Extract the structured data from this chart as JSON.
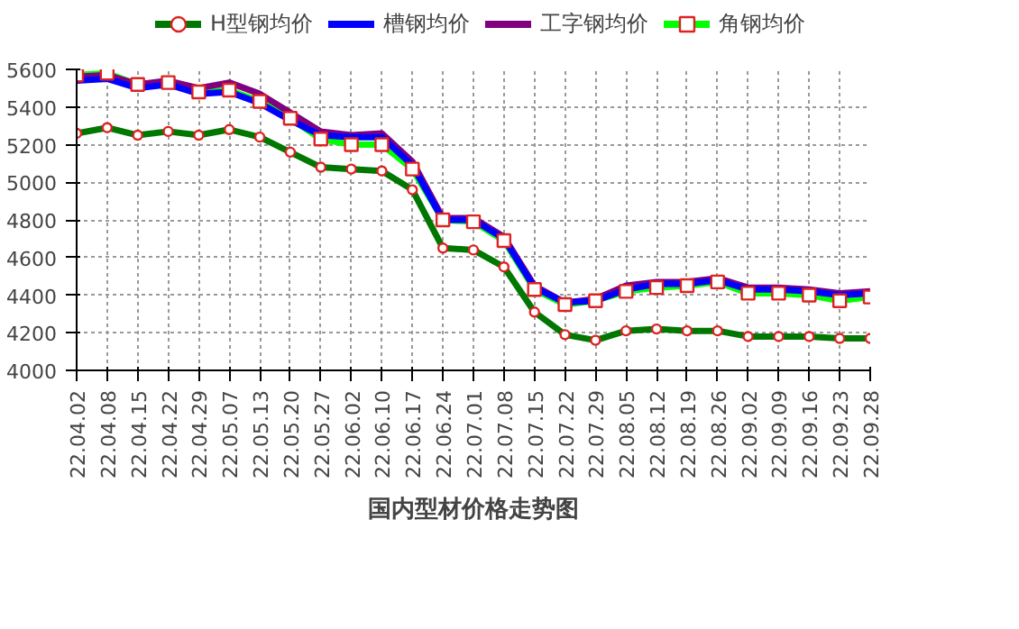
{
  "chart_data": {
    "type": "line",
    "title": "国内型材价格走势图",
    "categories": [
      "22.04.02",
      "22.04.08",
      "22.04.15",
      "22.04.22",
      "22.04.29",
      "22.05.07",
      "22.05.13",
      "22.05.20",
      "22.05.27",
      "22.06.02",
      "22.06.10",
      "22.06.17",
      "22.06.24",
      "22.07.01",
      "22.07.08",
      "22.07.15",
      "22.07.22",
      "22.07.29",
      "22.08.05",
      "22.08.12",
      "22.08.19",
      "22.08.26",
      "22.09.02",
      "22.09.09",
      "22.09.16",
      "22.09.23",
      "22.09.28"
    ],
    "series": [
      {
        "name": "H型钢均价",
        "color": "#007700",
        "marker": "circle",
        "values": [
          5260,
          5290,
          5250,
          5270,
          5250,
          5280,
          5240,
          5160,
          5080,
          5070,
          5060,
          4960,
          4650,
          4640,
          4550,
          4310,
          4190,
          4160,
          4210,
          4220,
          4210,
          4210,
          4180,
          4180,
          4180,
          4170,
          4170
        ]
      },
      {
        "name": "槽钢均价",
        "color": "#0000ff",
        "marker": "none",
        "values": [
          5540,
          5550,
          5500,
          5520,
          5470,
          5480,
          5420,
          5330,
          5250,
          5240,
          5240,
          5090,
          4800,
          4800,
          4700,
          4440,
          4360,
          4370,
          4430,
          4460,
          4460,
          4480,
          4430,
          4430,
          4420,
          4400,
          4410
        ]
      },
      {
        "name": "工字钢均价",
        "color": "#800080",
        "marker": "none",
        "values": [
          5560,
          5570,
          5520,
          5540,
          5500,
          5530,
          5470,
          5370,
          5270,
          5250,
          5260,
          5110,
          4810,
          4810,
          4710,
          4450,
          4360,
          4380,
          4450,
          4470,
          4470,
          4490,
          4440,
          4440,
          4430,
          4410,
          4420
        ]
      },
      {
        "name": "角钢均价",
        "color": "#00ff00",
        "marker": "square",
        "values": [
          5570,
          5580,
          5520,
          5530,
          5480,
          5490,
          5430,
          5340,
          5230,
          5200,
          5200,
          5070,
          4800,
          4790,
          4690,
          4430,
          4350,
          4370,
          4420,
          4440,
          4450,
          4470,
          4410,
          4410,
          4400,
          4370,
          4390
        ]
      }
    ],
    "ylim": [
      4000,
      5600
    ],
    "yticks": [
      4000,
      4200,
      4400,
      4600,
      4800,
      5000,
      5200,
      5400,
      5600
    ],
    "grid": true,
    "legend": "top",
    "line_style": "solid"
  }
}
